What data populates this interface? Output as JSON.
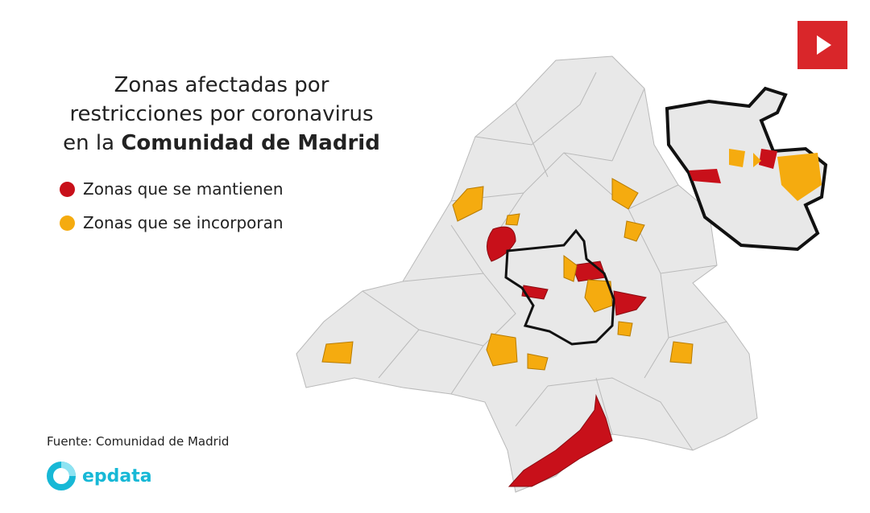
{
  "header": {
    "title_lines": [
      "Zonas afectadas por",
      "restricciones por coronavirus"
    ],
    "title_prefix": "en la",
    "title_emphasis": "Comunidad de Madrid"
  },
  "legend": [
    {
      "label": "Zonas que se mantienen",
      "color": "#c8101a"
    },
    {
      "label": "Zonas que se incorporan",
      "color": "#f5ab0f"
    }
  ],
  "source": "Fuente: Comunidad de Madrid",
  "logo": "epdata"
}
